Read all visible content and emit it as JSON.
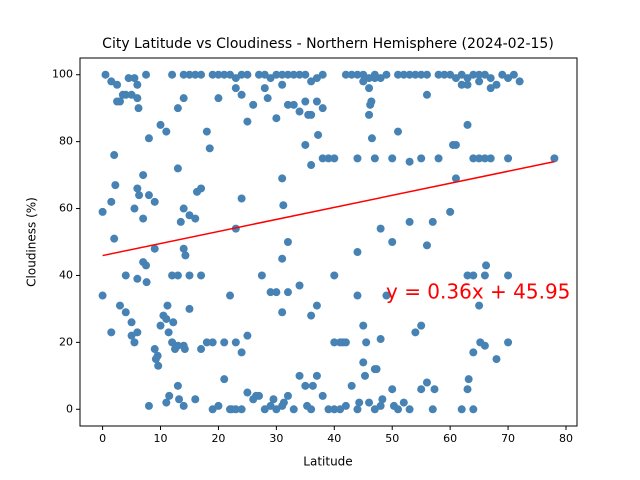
{
  "chart_data": {
    "type": "scatter",
    "title": "City Latitude vs Cloudiness - Northern Hemisphere (2024-02-15)",
    "x_label": "Latitude",
    "y_label": "Cloudiness (%)",
    "color": "#4682b4",
    "xlim": [
      -3.9,
      81.9
    ],
    "ylim": [
      -5,
      105
    ],
    "xticks": [
      0,
      10,
      20,
      30,
      40,
      50,
      60,
      70,
      80
    ],
    "yticks": [
      0,
      20,
      40,
      60,
      80,
      100
    ],
    "grid": false,
    "regression": {
      "slope": 0.36,
      "intercept": 45.95,
      "color": "#ff0000",
      "label": "y = 0.36x + 45.95"
    },
    "x": [
      0.5,
      1.5,
      2.5,
      3.5,
      4.5,
      5.5,
      5,
      6,
      6.2,
      7.5,
      3,
      4,
      6,
      12,
      14,
      15,
      16,
      17,
      19,
      20,
      21,
      22,
      23,
      24,
      25,
      27,
      28,
      29,
      30,
      31,
      32,
      33,
      34,
      35,
      36,
      37,
      38,
      42,
      43,
      44,
      45,
      46,
      47,
      48,
      49,
      51,
      52,
      53,
      54,
      55,
      56,
      58,
      59,
      60,
      61,
      62,
      63,
      64,
      65,
      66,
      67,
      68,
      69,
      70,
      71,
      72,
      62,
      63,
      65,
      67,
      45,
      46,
      47,
      13,
      14,
      10,
      11,
      8,
      18,
      18.5,
      20,
      23,
      24,
      25,
      26,
      28,
      28.5,
      30,
      31,
      32,
      33,
      34,
      35,
      35.5,
      36,
      37,
      37.2,
      38,
      46,
      46.2,
      46.4,
      56,
      60.5,
      61,
      63,
      51,
      2.5,
      2,
      8,
      6,
      7,
      6.3,
      5.5,
      9,
      13,
      14,
      15,
      16,
      16.3,
      17,
      24,
      31,
      31.2,
      35,
      36,
      38,
      39,
      40,
      44,
      46.5,
      47,
      50,
      53,
      55,
      58,
      61,
      60,
      64,
      65,
      66,
      67,
      70,
      78,
      2.2,
      0,
      1.5,
      2,
      7,
      7,
      7.5,
      9,
      12,
      13,
      14,
      14.3,
      13.5,
      15,
      17,
      23,
      31,
      32,
      34,
      40,
      44,
      48,
      50,
      53,
      56,
      57,
      63,
      64,
      66,
      66.2,
      70,
      4,
      6,
      7.6,
      27.5,
      0,
      1.5,
      3,
      4,
      5,
      5,
      5.5,
      6,
      9,
      9.5,
      10,
      10.5,
      11,
      11.2,
      11.4,
      12,
      12.2,
      12.5,
      13,
      14,
      15,
      17,
      18,
      19,
      21,
      22,
      23,
      24,
      25,
      29,
      30,
      31,
      32,
      36,
      37,
      40,
      41,
      42,
      44,
      45,
      48,
      49,
      54,
      55,
      64,
      65,
      65.2,
      66,
      68,
      70,
      14.2,
      9.2,
      9.6,
      47,
      45.5,
      41.5,
      8,
      11,
      11.5,
      13,
      13.2,
      14,
      16,
      19,
      20,
      21,
      22,
      23,
      24,
      25,
      26,
      27,
      28,
      29,
      30,
      31,
      32,
      33,
      34,
      35,
      35.3,
      36,
      36.3,
      37,
      38,
      39,
      40,
      41,
      42,
      43,
      44,
      44.3,
      45,
      45.3,
      46,
      47,
      47.3,
      48,
      48.3,
      50,
      50.3,
      51,
      52,
      53,
      55,
      56,
      57,
      57.3,
      62,
      63,
      63.2,
      64,
      29.5,
      31.3,
      22.3,
      26.5
    ],
    "values": [
      100,
      98,
      97,
      94,
      99,
      99,
      94,
      93,
      90,
      100,
      92,
      94,
      97,
      100,
      100,
      100,
      100,
      100,
      100,
      100,
      100,
      100,
      99,
      100,
      100,
      100,
      100,
      99,
      100,
      100,
      100,
      100,
      100,
      100,
      98,
      99,
      100,
      100,
      100,
      100,
      100,
      99,
      100,
      99,
      100,
      100,
      100,
      100,
      100,
      100,
      100,
      100,
      100,
      100,
      99,
      100,
      99,
      100,
      100,
      100,
      99,
      97,
      100,
      99,
      100,
      98,
      97,
      97,
      98,
      96,
      98,
      96,
      99,
      90,
      93,
      85,
      83,
      81,
      83,
      78,
      93,
      96,
      94,
      86,
      91,
      96,
      93,
      87,
      97,
      91,
      91,
      89,
      92,
      88,
      88,
      92,
      82,
      90,
      88,
      91,
      92,
      94,
      79,
      79,
      85,
      83,
      92,
      76,
      64,
      66,
      70,
      64,
      60,
      62,
      72,
      60,
      58,
      57,
      65,
      66,
      63,
      69,
      61,
      79,
      73,
      75,
      75,
      75,
      75,
      81,
      75,
      75,
      74,
      75,
      75,
      69,
      59,
      75,
      75,
      75,
      75,
      75,
      75,
      67,
      59,
      62,
      51,
      57,
      44,
      43,
      48,
      40,
      40,
      48,
      46,
      56,
      40,
      40,
      54,
      45,
      50,
      37,
      40,
      47,
      54,
      50,
      56,
      49,
      56,
      40,
      40,
      40,
      43,
      40,
      40,
      39,
      38,
      40,
      34,
      23,
      31,
      29,
      26,
      22,
      20,
      23,
      18,
      16,
      25,
      28,
      27,
      31,
      23,
      20,
      26,
      18,
      19,
      19,
      30,
      18,
      20,
      20,
      20,
      34,
      20,
      17,
      22,
      35,
      35,
      29,
      35,
      28,
      31,
      20,
      20,
      20,
      34,
      25,
      21,
      34,
      23,
      25,
      17,
      31,
      20,
      19,
      15,
      20,
      18,
      15,
      13,
      12,
      20,
      20,
      1,
      2,
      4,
      7,
      3,
      1,
      3,
      0,
      1,
      9,
      0,
      0,
      0,
      5,
      3,
      4,
      0,
      1,
      0,
      1,
      4,
      0,
      10,
      7,
      1,
      0,
      7,
      10,
      4,
      0,
      0,
      0,
      1,
      7,
      0,
      2,
      14,
      10,
      2,
      0,
      12,
      1,
      3,
      6,
      1,
      0,
      2,
      0,
      6,
      8,
      0,
      6,
      0,
      6,
      9,
      0,
      3,
      2,
      0,
      4
    ]
  }
}
